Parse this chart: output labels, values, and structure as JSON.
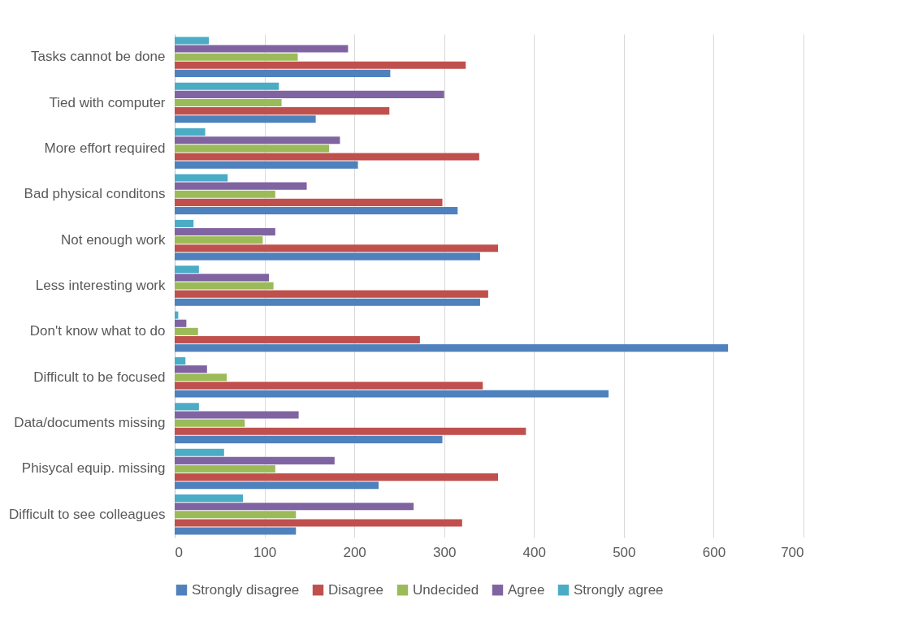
{
  "chart_data": {
    "type": "bar",
    "orientation": "horizontal",
    "categories": [
      "Tasks cannot be done",
      "Tied with computer",
      "More effort required",
      "Bad physical conditons",
      "Not enough work",
      "Less interesting work",
      "Don't know what to do",
      "Difficult to be focused",
      "Data/documents missing",
      "Phisycal equip. missing",
      "Difficult to see colleagues"
    ],
    "series": [
      {
        "name": "Strongly disagree",
        "color": "#4f81bd",
        "values": [
          240,
          157,
          204,
          315,
          340,
          340,
          616,
          483,
          298,
          227,
          135
        ]
      },
      {
        "name": "Disagree",
        "color": "#c0504d",
        "values": [
          324,
          239,
          339,
          298,
          360,
          349,
          273,
          343,
          391,
          360,
          320
        ]
      },
      {
        "name": "Undecided",
        "color": "#9bbb59",
        "values": [
          137,
          119,
          172,
          112,
          98,
          110,
          26,
          58,
          78,
          112,
          135
        ]
      },
      {
        "name": "Agree",
        "color": "#8064a2",
        "values": [
          193,
          300,
          184,
          147,
          112,
          105,
          13,
          36,
          138,
          178,
          266
        ]
      },
      {
        "name": "Strongly agree",
        "color": "#4bacc6",
        "values": [
          38,
          116,
          34,
          59,
          21,
          27,
          4,
          12,
          27,
          55,
          76
        ]
      }
    ],
    "xlim": [
      0,
      700
    ],
    "xticks": [
      0,
      100,
      200,
      300,
      400,
      500,
      600,
      700
    ],
    "grid": "x",
    "legend": "bottom"
  }
}
